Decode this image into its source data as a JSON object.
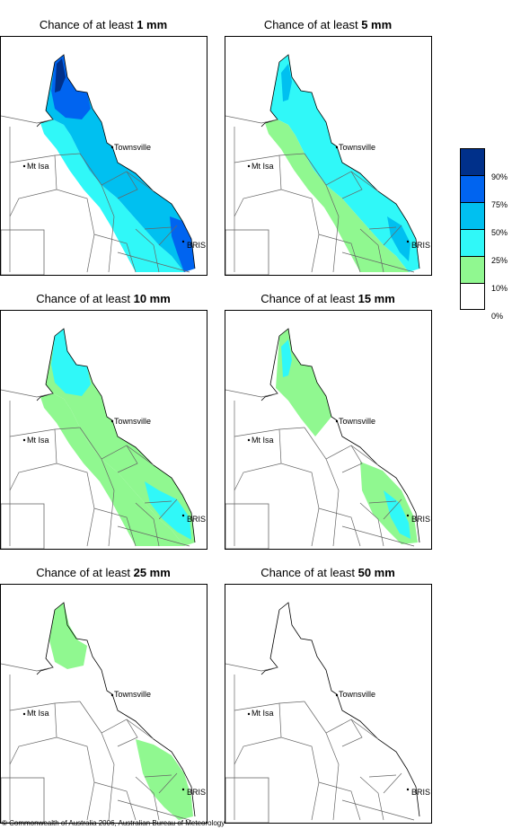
{
  "panels": [
    {
      "title_prefix": "Chance of at least ",
      "amount": "1 mm"
    },
    {
      "title_prefix": "Chance of at least ",
      "amount": "5 mm"
    },
    {
      "title_prefix": "Chance of at least ",
      "amount": "10 mm"
    },
    {
      "title_prefix": "Chance of at least ",
      "amount": "15 mm"
    },
    {
      "title_prefix": "Chance of at least ",
      "amount": "25 mm"
    },
    {
      "title_prefix": "Chance of at least ",
      "amount": "50 mm"
    }
  ],
  "cities": {
    "townsville": "Townsville",
    "mt_isa": "Mt Isa",
    "bris": "BRIS"
  },
  "legend": {
    "labels": [
      "90%",
      "75%",
      "50%",
      "25%",
      "10%",
      "0%"
    ],
    "colors": [
      "#00308a",
      "#0064f0",
      "#00c0f0",
      "#30f8f8",
      "#90f890",
      "#ffffff"
    ]
  },
  "footer": "© Commonwealth of Australia 2006, Australian Bureau of Meteorology"
}
